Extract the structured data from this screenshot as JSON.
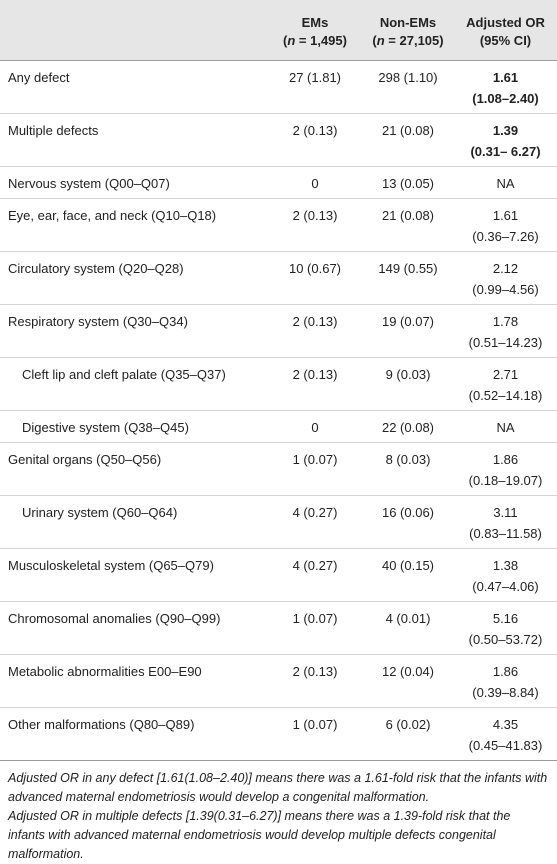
{
  "table": {
    "header": [
      {
        "title": "EMs",
        "count": [
          "(",
          "n",
          " = 1,495)"
        ]
      },
      {
        "title": "Non-EMs",
        "count": [
          "(",
          "n",
          " = 27,105)"
        ]
      },
      {
        "title": "Adjusted OR",
        "count": [
          "(95% CI)"
        ]
      }
    ],
    "rows": [
      {
        "label": "Any defect",
        "ems": "27 (1.81)",
        "non_ems": "298 (1.10)",
        "or": "1.61",
        "ci": "(1.08–2.40)",
        "bold": true
      },
      {
        "label": "Multiple defects",
        "ems": "2 (0.13)",
        "non_ems": "21 (0.08)",
        "or": "1.39",
        "ci": "(0.31– 6.27)",
        "bold": true
      },
      {
        "label": "Nervous system (Q00–Q07)",
        "ems": "0",
        "non_ems": "13 (0.05)",
        "or": "NA"
      },
      {
        "label": "Eye, ear, face, and neck (Q10–Q18)",
        "ems": "2 (0.13)",
        "non_ems": "21 (0.08)",
        "or": "1.61",
        "ci": "(0.36–7.26)"
      },
      {
        "label": "Circulatory system (Q20–Q28)",
        "ems": "10 (0.67)",
        "non_ems": "149 (0.55)",
        "or": "2.12",
        "ci": "(0.99–4.56)"
      },
      {
        "label": "Respiratory system (Q30–Q34)",
        "ems": "2 (0.13)",
        "non_ems": "19 (0.07)",
        "or": "1.78",
        "ci": "(0.51–14.23)"
      },
      {
        "label": "Cleft lip and cleft palate (Q35–Q37)",
        "ems": "2 (0.13)",
        "non_ems": "9 (0.03)",
        "or": "2.71",
        "ci": "(0.52–14.18)",
        "indent": true
      },
      {
        "label": "Digestive system (Q38–Q45)",
        "ems": "0",
        "non_ems": "22 (0.08)",
        "or": "NA",
        "indent": true
      },
      {
        "label": "Genital organs (Q50–Q56)",
        "ems": "1 (0.07)",
        "non_ems": "8 (0.03)",
        "or": "1.86",
        "ci": "(0.18–19.07)"
      },
      {
        "label": "Urinary system (Q60–Q64)",
        "ems": "4 (0.27)",
        "non_ems": "16 (0.06)",
        "or": "3.11",
        "ci": "(0.83–11.58)",
        "indent": true
      },
      {
        "label": "Musculoskeletal system (Q65–Q79)",
        "ems": "4 (0.27)",
        "non_ems": "40 (0.15)",
        "or": "1.38",
        "ci": "(0.47–4.06)"
      },
      {
        "label": "Chromosomal anomalies (Q90–Q99)",
        "ems": "1 (0.07)",
        "non_ems": "4 (0.01)",
        "or": "5.16",
        "ci": "(0.50–53.72)"
      },
      {
        "label": "Metabolic abnormalities E00–E90",
        "ems": "2 (0.13)",
        "non_ems": "12 (0.04)",
        "or": "1.86",
        "ci": "(0.39–8.84)"
      },
      {
        "label": "Other malformations (Q80–Q89)",
        "ems": "1 (0.07)",
        "non_ems": "6 (0.02)",
        "or": "4.35",
        "ci": "(0.45–41.83)"
      }
    ]
  },
  "footnote": [
    "Adjusted OR in any defect [1.61(1.08–2.40)] means there was a 1.61-fold risk that the infants with advanced maternal endometriosis would develop a congenital malformation.",
    "Adjusted OR in multiple defects [1.39(0.31–6.27)] means there was a 1.39-fold risk that the infants with advanced maternal endometriosis would develop multiple defects congenital malformation."
  ]
}
